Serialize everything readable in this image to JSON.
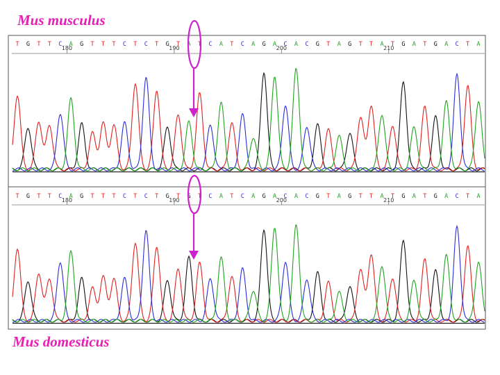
{
  "panels": [
    {
      "species": "Mus musculus",
      "sequence": "TGTTCAGTTTCTCTGTATCATCAGACACGTAGTTATGATGACTA",
      "position_labels": [
        "180",
        "190",
        "200",
        "210"
      ],
      "highlighted_base": "A"
    },
    {
      "species": "Mus domesticus",
      "sequence": "TGTTCAGTTTCTCTGTGTCATCAGACACGTAGTTATGATGACTA",
      "position_labels": [
        "180",
        "190",
        "200",
        "210"
      ],
      "highlighted_base": "G"
    }
  ],
  "base_colors": {
    "A": "#1fa31f",
    "C": "#2b2bd9",
    "G": "#111111",
    "T": "#e02020"
  },
  "highlight_color": "#cc22cc"
}
